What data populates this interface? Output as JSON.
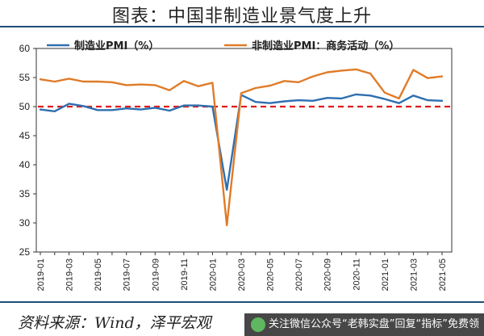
{
  "header": {
    "title": "图表：中国非制造业景气度上升"
  },
  "footer": {
    "source": "资料来源：Wind，泽平宏观",
    "watermark": "关注微信公众号“老韩实盘”回复“指标”免费领"
  },
  "colors": {
    "manufacturing": "#2f6fb0",
    "nonmanufacturing": "#e07b28",
    "threshold": "#e01b1b"
  },
  "chart_data": {
    "type": "line",
    "title": "",
    "xlabel": "",
    "ylabel": "",
    "ylim": [
      25,
      60
    ],
    "yticks": [
      25,
      30,
      35,
      40,
      45,
      50,
      55,
      60
    ],
    "grid": false,
    "legend_position": "top",
    "x": [
      "2019-01",
      "2019-02",
      "2019-03",
      "2019-04",
      "2019-05",
      "2019-06",
      "2019-07",
      "2019-08",
      "2019-09",
      "2019-10",
      "2019-11",
      "2019-12",
      "2020-01",
      "2020-02",
      "2020-03",
      "2020-04",
      "2020-05",
      "2020-06",
      "2020-07",
      "2020-08",
      "2020-09",
      "2020-10",
      "2020-11",
      "2020-12",
      "2021-01",
      "2021-02",
      "2021-03",
      "2021-04",
      "2021-05"
    ],
    "xtick_labels": [
      "2019-01",
      "2019-03",
      "2019-05",
      "2019-07",
      "2019-09",
      "2019-11",
      "2020-01",
      "2020-03",
      "2020-05",
      "2020-07",
      "2020-09",
      "2020-11",
      "2021-01",
      "2021-03",
      "2021-05"
    ],
    "series": [
      {
        "name": "制造业PMI（%）",
        "values": [
          49.5,
          49.2,
          50.5,
          50.1,
          49.4,
          49.4,
          49.7,
          49.5,
          49.8,
          49.3,
          50.2,
          50.2,
          50.0,
          35.7,
          52.0,
          50.8,
          50.6,
          50.9,
          51.1,
          51.0,
          51.5,
          51.4,
          52.1,
          51.9,
          51.3,
          50.6,
          51.9,
          51.1,
          51.0
        ]
      },
      {
        "name": "非制造业PMI：商务活动（%）",
        "values": [
          54.7,
          54.3,
          54.8,
          54.3,
          54.3,
          54.2,
          53.7,
          53.8,
          53.7,
          52.8,
          54.4,
          53.5,
          54.1,
          29.6,
          52.3,
          53.2,
          53.6,
          54.4,
          54.2,
          55.2,
          55.9,
          56.2,
          56.4,
          55.7,
          52.4,
          51.4,
          56.3,
          54.9,
          55.2
        ]
      }
    ],
    "reference_lines": [
      {
        "value": 50,
        "style": "dashed"
      }
    ]
  }
}
